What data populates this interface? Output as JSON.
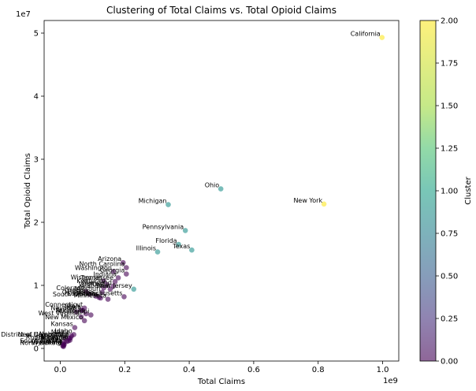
{
  "chart_data": {
    "type": "scatter",
    "title": "Clustering of Total Claims vs. Total Opioid Claims",
    "xlabel": "Total Claims",
    "ylabel": "Total Opioid Claims",
    "x_offset_label": "1e9",
    "y_offset_label": "1e7",
    "x_scale_exponent": 9,
    "y_scale_exponent": 7,
    "xlim": [
      -0.05,
      1.05
    ],
    "ylim": [
      -0.2,
      5.2
    ],
    "x_ticks": [
      0.0,
      0.2,
      0.4,
      0.6,
      0.8,
      1.0
    ],
    "x_tick_labels": [
      "0.0",
      "0.2",
      "0.4",
      "0.6",
      "0.8",
      "1.0"
    ],
    "y_ticks": [
      0,
      1,
      2,
      3,
      4,
      5
    ],
    "y_tick_labels": [
      "0",
      "1",
      "2",
      "3",
      "4",
      "5"
    ],
    "grid": false,
    "colorbar": {
      "label": "Cluster",
      "min": 0.0,
      "max": 2.0,
      "ticks": [
        "0.00",
        "0.25",
        "0.50",
        "0.75",
        "1.00",
        "1.25",
        "1.50",
        "1.75",
        "2.00"
      ],
      "colormap": "viridis",
      "alpha": 0.6
    },
    "colors": {
      "cluster_0": "#440154",
      "cluster_1": "#21918c",
      "cluster_2": "#fde725"
    },
    "points": [
      {
        "label": "California",
        "x": 0.998,
        "y": 4.93,
        "cluster": 2
      },
      {
        "label": "New York",
        "x": 0.818,
        "y": 2.29,
        "cluster": 2
      },
      {
        "label": "Ohio",
        "x": 0.498,
        "y": 2.53,
        "cluster": 1
      },
      {
        "label": "Michigan",
        "x": 0.335,
        "y": 2.28,
        "cluster": 1
      },
      {
        "label": "Pennsylvania",
        "x": 0.388,
        "y": 1.87,
        "cluster": 1
      },
      {
        "label": "Florida",
        "x": 0.367,
        "y": 1.65,
        "cluster": 1
      },
      {
        "label": "Texas",
        "x": 0.408,
        "y": 1.56,
        "cluster": 1
      },
      {
        "label": "Illinois",
        "x": 0.302,
        "y": 1.53,
        "cluster": 1
      },
      {
        "label": "New Jersey",
        "x": 0.228,
        "y": 0.94,
        "cluster": 1
      },
      {
        "label": "Arizona",
        "x": 0.195,
        "y": 1.36,
        "cluster": 0
      },
      {
        "label": "North Carolina",
        "x": 0.205,
        "y": 1.28,
        "cluster": 0
      },
      {
        "label": "Washington",
        "x": 0.165,
        "y": 1.22,
        "cluster": 0
      },
      {
        "label": "Georgia",
        "x": 0.205,
        "y": 1.18,
        "cluster": 0
      },
      {
        "label": "Indiana",
        "x": 0.18,
        "y": 1.12,
        "cluster": 0
      },
      {
        "label": "Tennessee",
        "x": 0.17,
        "y": 1.06,
        "cluster": 0
      },
      {
        "label": "Wisconsin",
        "x": 0.135,
        "y": 1.07,
        "cluster": 0
      },
      {
        "label": "Kentucky",
        "x": 0.145,
        "y": 1.01,
        "cluster": 0
      },
      {
        "label": "Maryland",
        "x": 0.165,
        "y": 0.99,
        "cluster": 0
      },
      {
        "label": "Virginia",
        "x": 0.135,
        "y": 0.96,
        "cluster": 0
      },
      {
        "label": "Alabama",
        "x": 0.155,
        "y": 0.94,
        "cluster": 0
      },
      {
        "label": "Colorado",
        "x": 0.08,
        "y": 0.9,
        "cluster": 0
      },
      {
        "label": "Missouri",
        "x": 0.13,
        "y": 0.89,
        "cluster": 0
      },
      {
        "label": "Oregon",
        "x": 0.09,
        "y": 0.86,
        "cluster": 0
      },
      {
        "label": "Oklahoma",
        "x": 0.11,
        "y": 0.83,
        "cluster": 0
      },
      {
        "label": "Louisiana",
        "x": 0.12,
        "y": 0.81,
        "cluster": 0
      },
      {
        "label": "Massachusetts",
        "x": 0.198,
        "y": 0.82,
        "cluster": 0
      },
      {
        "label": "Minnesota",
        "x": 0.148,
        "y": 0.78,
        "cluster": 0
      },
      {
        "label": "South Carolina",
        "x": 0.125,
        "y": 0.8,
        "cluster": 0
      },
      {
        "label": "Connecticut",
        "x": 0.075,
        "y": 0.64,
        "cluster": 0
      },
      {
        "label": "Utah",
        "x": 0.065,
        "y": 0.61,
        "cluster": 0
      },
      {
        "label": "Iowa",
        "x": 0.07,
        "y": 0.6,
        "cluster": 0
      },
      {
        "label": "Nevada",
        "x": 0.05,
        "y": 0.58,
        "cluster": 0
      },
      {
        "label": "Arkansas",
        "x": 0.08,
        "y": 0.55,
        "cluster": 0
      },
      {
        "label": "Mississippi",
        "x": 0.095,
        "y": 0.53,
        "cluster": 0
      },
      {
        "label": "West Virginia",
        "x": 0.065,
        "y": 0.5,
        "cluster": 0
      },
      {
        "label": "New Mexico",
        "x": 0.075,
        "y": 0.44,
        "cluster": 0
      },
      {
        "label": "Kansas",
        "x": 0.045,
        "y": 0.33,
        "cluster": 0
      },
      {
        "label": "Idaho",
        "x": 0.042,
        "y": 0.22,
        "cluster": 0
      },
      {
        "label": "Maine",
        "x": 0.035,
        "y": 0.2,
        "cluster": 0
      },
      {
        "label": "Nebraska",
        "x": 0.032,
        "y": 0.17,
        "cluster": 0
      },
      {
        "label": "New Hampshire",
        "x": 0.028,
        "y": 0.16,
        "cluster": 0
      },
      {
        "label": "Montana",
        "x": 0.03,
        "y": 0.13,
        "cluster": 0
      },
      {
        "label": "Rhode Island",
        "x": 0.025,
        "y": 0.12,
        "cluster": 0
      },
      {
        "label": "Delaware",
        "x": 0.02,
        "y": 0.11,
        "cluster": 0
      },
      {
        "label": "District of Columbia",
        "x": 0.015,
        "y": 0.16,
        "cluster": 0
      },
      {
        "label": "Hawaii",
        "x": 0.012,
        "y": 0.1,
        "cluster": 0
      },
      {
        "label": "Alaska",
        "x": 0.01,
        "y": 0.07,
        "cluster": 0
      },
      {
        "label": "Vermont",
        "x": 0.01,
        "y": 0.05,
        "cluster": 0
      },
      {
        "label": "Wyoming",
        "x": 0.008,
        "y": 0.04,
        "cluster": 0
      },
      {
        "label": "South Dakota",
        "x": 0.012,
        "y": 0.06,
        "cluster": 0
      },
      {
        "label": "North Dakota",
        "x": 0.01,
        "y": 0.03,
        "cluster": 0
      }
    ]
  }
}
